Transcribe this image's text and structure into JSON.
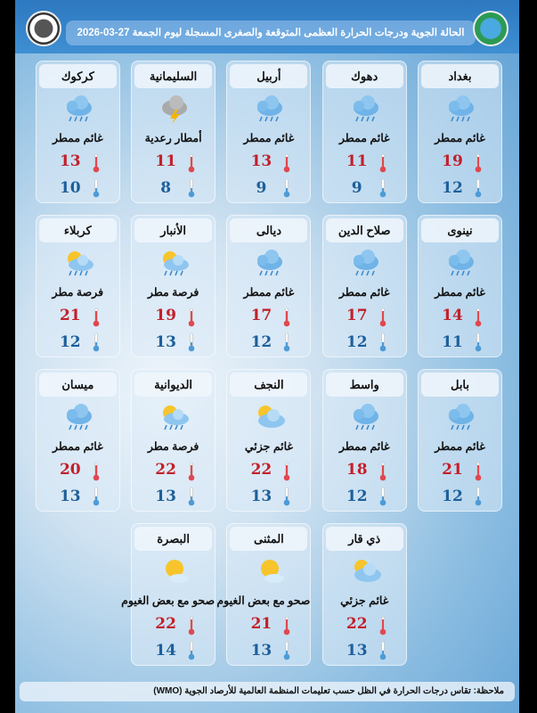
{
  "header": {
    "title": "الحالة الجوية ودرجات الحرارة العظمى المتوقعة والصغرى المسجلة ليوم الجمعة 27-03-2026"
  },
  "colors": {
    "max_temp": "#c3202a",
    "min_temp": "#1d5f9a",
    "header_bg": "#2d78c0"
  },
  "cities": [
    {
      "name": "بغداد",
      "condition": "غائم ممطر",
      "icon": "rain-cloud-icon",
      "max": "19",
      "min": "12"
    },
    {
      "name": "دهوك",
      "condition": "غائم ممطر",
      "icon": "rain-cloud-icon",
      "max": "11",
      "min": "9"
    },
    {
      "name": "أربيل",
      "condition": "غائم ممطر",
      "icon": "rain-cloud-icon",
      "max": "13",
      "min": "9"
    },
    {
      "name": "السليمانية",
      "condition": "أمطار رعدية",
      "icon": "thunderstorm-icon",
      "max": "11",
      "min": "8"
    },
    {
      "name": "كركوك",
      "condition": "غائم ممطر",
      "icon": "rain-cloud-icon",
      "max": "13",
      "min": "10"
    },
    {
      "name": "نينوى",
      "condition": "غائم ممطر",
      "icon": "rain-cloud-icon",
      "max": "14",
      "min": "11"
    },
    {
      "name": "صلاح الدين",
      "condition": "غائم ممطر",
      "icon": "rain-cloud-icon",
      "max": "17",
      "min": "12"
    },
    {
      "name": "ديالى",
      "condition": "غائم ممطر",
      "icon": "rain-cloud-icon",
      "max": "17",
      "min": "12"
    },
    {
      "name": "الأنبار",
      "condition": "فرصة مطر",
      "icon": "sun-cloud-rain-icon",
      "max": "19",
      "min": "13"
    },
    {
      "name": "كربلاء",
      "condition": "فرصة مطر",
      "icon": "sun-cloud-rain-icon",
      "max": "21",
      "min": "12"
    },
    {
      "name": "بابل",
      "condition": "غائم ممطر",
      "icon": "rain-cloud-icon",
      "max": "21",
      "min": "12"
    },
    {
      "name": "واسط",
      "condition": "غائم ممطر",
      "icon": "rain-cloud-icon",
      "max": "18",
      "min": "12"
    },
    {
      "name": "النجف",
      "condition": "غائم جزئي",
      "icon": "partly-cloudy-icon",
      "max": "22",
      "min": "13"
    },
    {
      "name": "الديوانية",
      "condition": "فرصة مطر",
      "icon": "sun-cloud-rain-icon",
      "max": "22",
      "min": "13"
    },
    {
      "name": "ميسان",
      "condition": "غائم ممطر",
      "icon": "rain-cloud-icon",
      "max": "20",
      "min": "13"
    },
    {
      "name": "ذي قار",
      "condition": "غائم جزئي",
      "icon": "partly-cloudy-icon",
      "max": "22",
      "min": "13"
    },
    {
      "name": "المثنى",
      "condition": "صحو مع بعض الغيوم",
      "icon": "sunny-few-clouds-icon",
      "max": "21",
      "min": "13"
    },
    {
      "name": "البصرة",
      "condition": "صحو مع بعض الغيوم",
      "icon": "sunny-few-clouds-icon",
      "max": "22",
      "min": "14"
    }
  ],
  "footer": {
    "note": "ملاحظة: تقاس درجات الحرارة في الظل حسب تعليمات المنظمة العالمية للأرصاد الجوية (WMO)"
  }
}
